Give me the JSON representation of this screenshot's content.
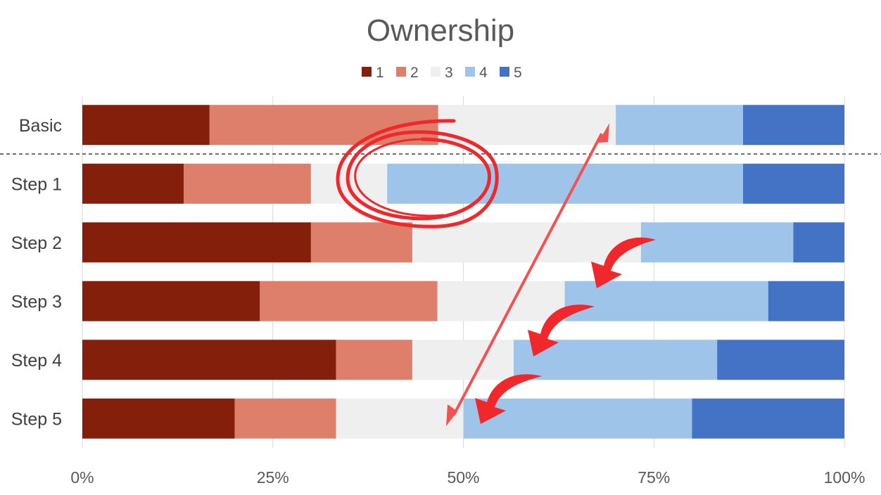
{
  "chart_data": {
    "type": "bar",
    "orientation": "horizontal",
    "stacked": "percent",
    "title": "Ownership",
    "categories": [
      "Basic",
      "Step 1",
      "Step 2",
      "Step 3",
      "Step 4",
      "Step 5"
    ],
    "series": [
      {
        "name": "1",
        "color": "#841F0C",
        "values": [
          16.7,
          13.3,
          30.0,
          23.3,
          33.3,
          20.0
        ]
      },
      {
        "name": "2",
        "color": "#DE7F6C",
        "values": [
          30.0,
          16.7,
          13.3,
          23.3,
          10.0,
          13.3
        ]
      },
      {
        "name": "3",
        "color": "#EFEFEF",
        "values": [
          23.3,
          10.0,
          30.0,
          16.7,
          13.3,
          16.7
        ]
      },
      {
        "name": "4",
        "color": "#9FC4E9",
        "values": [
          16.7,
          46.7,
          20.0,
          26.7,
          26.7,
          30.0
        ]
      },
      {
        "name": "5",
        "color": "#4472C4",
        "values": [
          13.3,
          13.3,
          6.7,
          10.0,
          16.7,
          20.0
        ]
      }
    ],
    "xticks": [
      "0%",
      "25%",
      "50%",
      "75%",
      "100%"
    ],
    "xlim": [
      0,
      100
    ],
    "grid": true,
    "legend_position": "top",
    "annotations": [
      "dashed separator below Basic",
      "circle around Step 1 categories 3-4",
      "double-headed arrow",
      "curved arrows"
    ]
  }
}
